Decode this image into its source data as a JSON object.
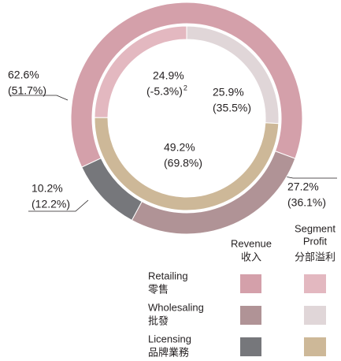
{
  "chart_data": {
    "type": "nested-donut",
    "categories": [
      "Retailing",
      "Wholesaling",
      "Licensing"
    ],
    "categories_zh": [
      "零售",
      "批發",
      "品牌業務"
    ],
    "series": [
      {
        "name": "Revenue",
        "name_zh": "收入",
        "ring": "outer",
        "colors": [
          "#d4a0aa",
          "#b09396",
          "#76777b"
        ],
        "values": [
          62.6,
          27.2,
          10.2
        ],
        "value_labels": [
          "62.6%",
          "27.2%",
          "10.2%"
        ],
        "prior_values": [
          51.7,
          36.1,
          12.2
        ],
        "prior_labels": [
          "(51.7%)",
          "(36.1%)",
          "(12.2%)"
        ]
      },
      {
        "name_lines": [
          "Segment",
          "Profit"
        ],
        "name_zh": "分部溢利",
        "ring": "inner",
        "colors": [
          "#e3b8c0",
          "#e0d6d8",
          "#cdb898"
        ],
        "values": [
          24.9,
          25.9,
          49.2
        ],
        "value_labels": [
          "24.9%",
          "25.9%",
          "49.2%"
        ],
        "prior_values": [
          -5.3,
          35.5,
          69.8
        ],
        "prior_labels": [
          "(-5.3%)",
          "(35.5%)",
          "(69.8%)"
        ],
        "footnotes": [
          "2",
          null,
          null
        ]
      }
    ]
  }
}
